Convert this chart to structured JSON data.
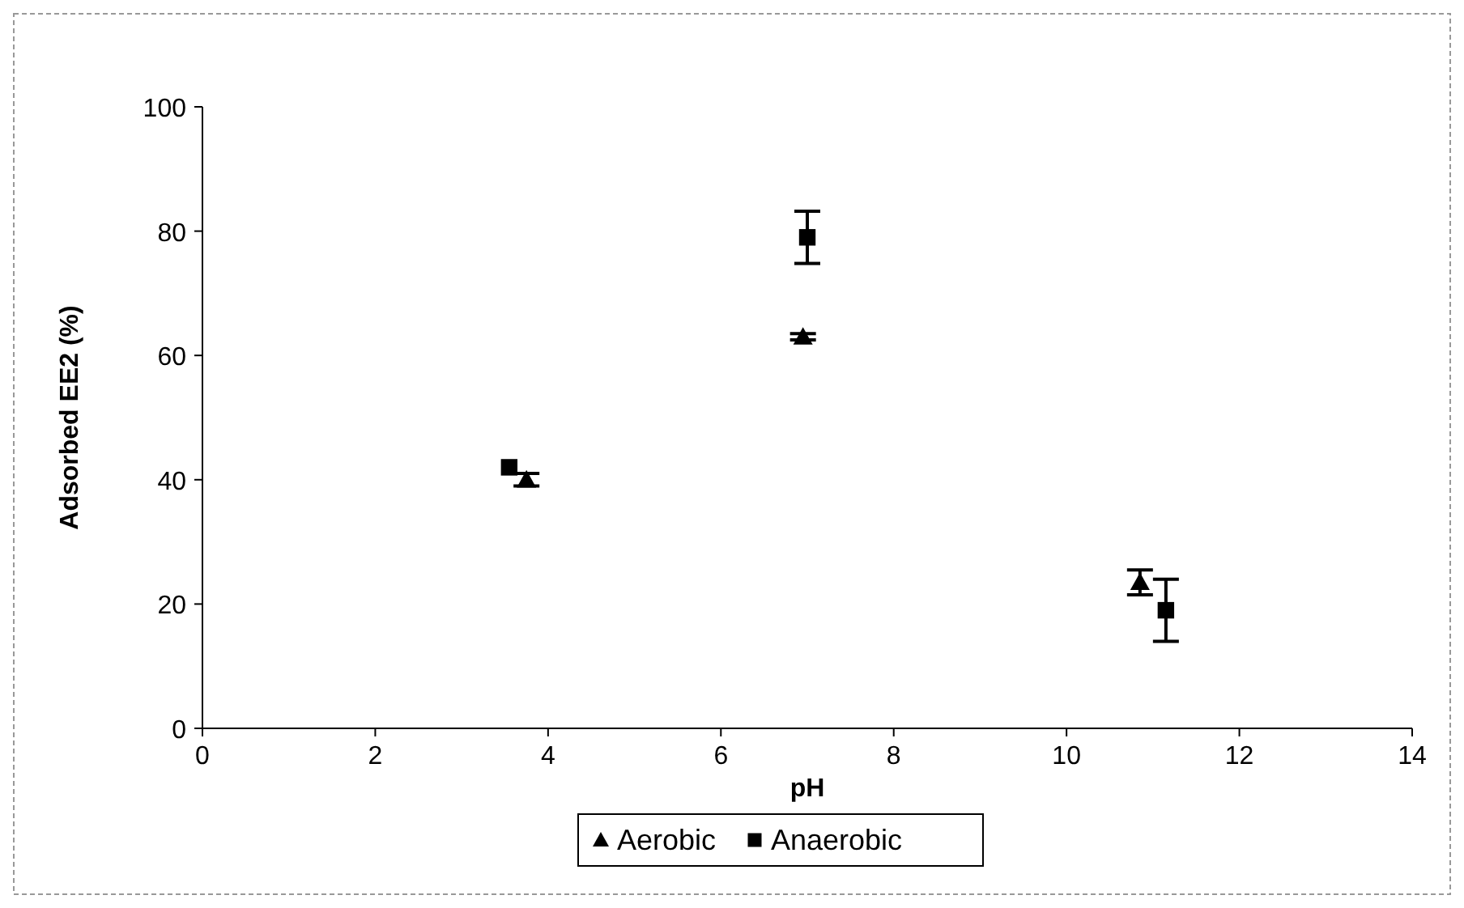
{
  "chart_data": {
    "type": "scatter",
    "xlabel": "pH",
    "ylabel": "Adsorbed EE2 (%)",
    "xlim": [
      0,
      14
    ],
    "xticks": [
      0,
      2,
      4,
      6,
      8,
      10,
      12,
      14
    ],
    "ylim": [
      0,
      100
    ],
    "yticks": [
      0,
      20,
      40,
      60,
      80,
      100
    ],
    "grid": false,
    "legend": "bottom",
    "series": [
      {
        "name": "Aerobic",
        "color": "#000000",
        "marker": "triangle",
        "x": [
          3.75,
          6.95,
          10.85
        ],
        "values": [
          40,
          63,
          23.5
        ],
        "errors": [
          1,
          0.5,
          2
        ]
      },
      {
        "name": "Anaerobic",
        "color": "#000000",
        "marker": "square",
        "x": [
          3.55,
          7.0,
          11.15
        ],
        "values": [
          42,
          79,
          19
        ],
        "errors": [
          null,
          4.2,
          5
        ]
      }
    ]
  }
}
